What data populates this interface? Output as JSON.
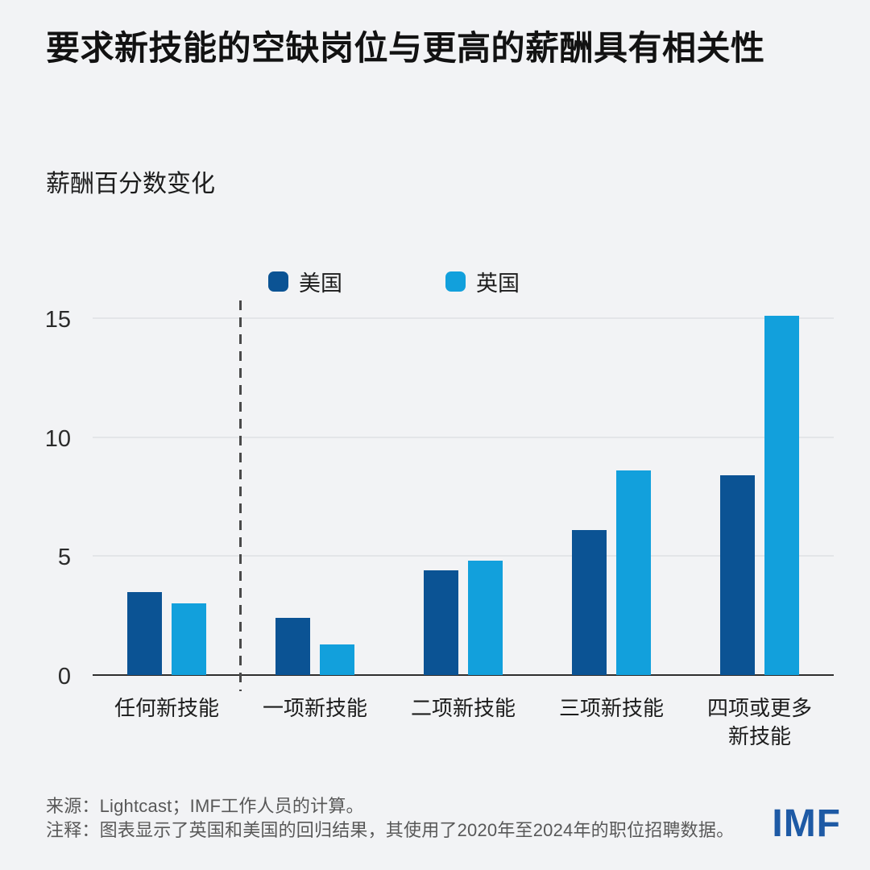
{
  "colors": {
    "background": "#F2F3F5",
    "grid": "#E3E5E8",
    "axis": "#2E2E2E",
    "divider": "#4A4A4A",
    "logo_blue": "#1E5AA5"
  },
  "header": {
    "title": "要求新技能的空缺岗位与更高的薪酬具有相关性"
  },
  "chart": {
    "y_axis_title": "薪酬百分数变化"
  },
  "chart_data": {
    "type": "bar",
    "title": "要求新技能的空缺岗位与更高的薪酬具有相关性",
    "ylabel": "薪酬百分数变化",
    "xlabel": "",
    "categories": [
      "任何新技能",
      "一项新技能",
      "二项新技能",
      "三项新技能",
      "四项或更多\n新技能"
    ],
    "series": [
      {
        "name": "美国",
        "color": "#0B5394",
        "values": [
          3.5,
          2.4,
          4.4,
          6.1,
          8.4
        ]
      },
      {
        "name": "英国",
        "color": "#12A0DC",
        "values": [
          3.0,
          1.3,
          4.8,
          8.6,
          15.1
        ]
      }
    ],
    "ylim": [
      0,
      15.5
    ],
    "yticks": [
      0,
      5,
      10,
      15
    ],
    "grid": true,
    "legend_position": "top",
    "divider_after_category_index": 0
  },
  "footer": {
    "source": "来源：Lightcast；IMF工作人员的计算。",
    "note": "注释：图表显示了英国和美国的回归结果，其使用了2020年至2024年的职位招聘数据。",
    "logo": "IMF"
  }
}
